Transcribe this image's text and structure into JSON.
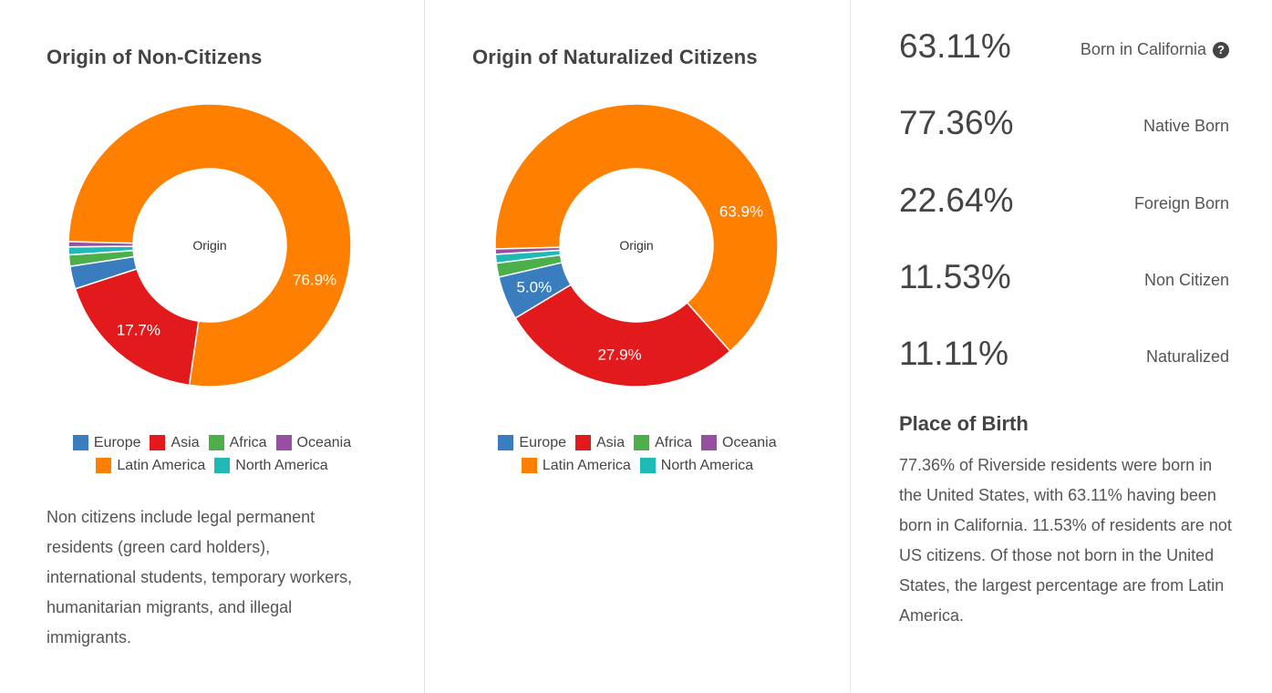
{
  "charts": [
    {
      "title": "Origin of Non-Citizens",
      "center_label": "Origin",
      "note": "Non citizens include legal permanent residents (green card holders), international students, temporary workers, humanitarian migrants, and illegal immigrants."
    },
    {
      "title": "Origin of Naturalized Citizens",
      "center_label": "Origin",
      "note": ""
    }
  ],
  "legend": {
    "row1": [
      {
        "label": "Europe",
        "color": "#3a7dbf"
      },
      {
        "label": "Asia",
        "color": "#e31a1c"
      },
      {
        "label": "Africa",
        "color": "#4daf4a"
      },
      {
        "label": "Oceania",
        "color": "#984ea3"
      }
    ],
    "row2": [
      {
        "label": "Latin America",
        "color": "#ff7f00"
      },
      {
        "label": "North America",
        "color": "#1fbab6"
      }
    ]
  },
  "chart_data": [
    {
      "type": "pie",
      "title": "Origin of Non-Citizens",
      "categories": [
        "Latin America",
        "Asia",
        "Europe",
        "Africa",
        "North America",
        "Oceania"
      ],
      "values": [
        76.9,
        17.7,
        2.6,
        1.3,
        0.9,
        0.6
      ],
      "colors": [
        "#ff7f00",
        "#e31a1c",
        "#3a7dbf",
        "#4daf4a",
        "#1fbab6",
        "#984ea3"
      ],
      "labels": [
        "76.9%",
        "17.7%",
        "",
        "",
        "",
        ""
      ]
    },
    {
      "type": "pie",
      "title": "Origin of Naturalized Citizens",
      "categories": [
        "Latin America",
        "Asia",
        "Europe",
        "Africa",
        "North America",
        "Oceania"
      ],
      "values": [
        63.9,
        27.9,
        5.0,
        1.6,
        1.0,
        0.6
      ],
      "colors": [
        "#ff7f00",
        "#e31a1c",
        "#3a7dbf",
        "#4daf4a",
        "#1fbab6",
        "#984ea3"
      ],
      "labels": [
        "63.9%",
        "27.9%",
        "5.0%",
        "",
        "",
        ""
      ]
    }
  ],
  "stats": [
    {
      "value": "63.11%",
      "label": "Born in California",
      "help": "?"
    },
    {
      "value": "77.36%",
      "label": "Native Born",
      "help": ""
    },
    {
      "value": "22.64%",
      "label": "Foreign Born",
      "help": ""
    },
    {
      "value": "11.53%",
      "label": "Non Citizen",
      "help": ""
    },
    {
      "value": "11.11%",
      "label": "Naturalized",
      "help": ""
    }
  ],
  "place_of_birth": {
    "title": "Place of Birth",
    "text": "77.36% of Riverside residents were born in the United States, with 63.11% having been born in California. 11.53% of residents are not US citizens. Of those not born in the United States, the largest percentage are from Latin America."
  }
}
